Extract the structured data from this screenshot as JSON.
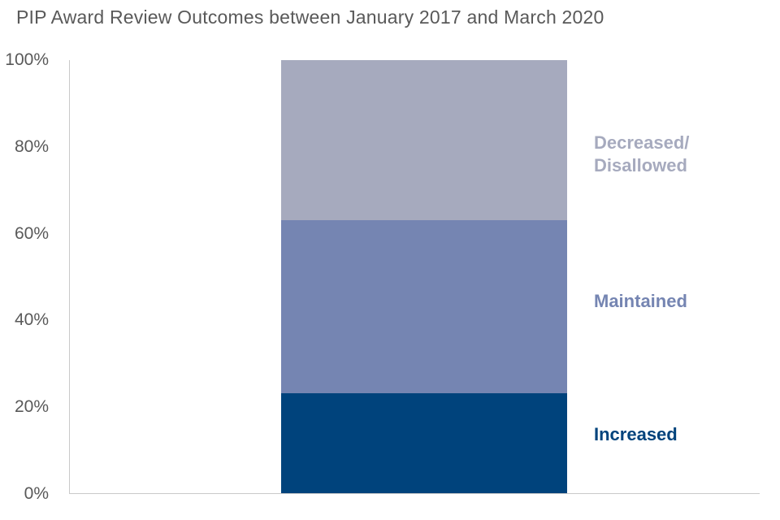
{
  "title": "PIP Award Review Outcomes between January 2017 and March 2020",
  "chart_data": {
    "type": "bar",
    "variant": "100%-stacked-column",
    "title": "PIP Award Review Outcomes between January 2017 and March 2020",
    "categories": [
      ""
    ],
    "series": [
      {
        "name": "Increased",
        "values": [
          23
        ],
        "color": "#00437c"
      },
      {
        "name": "Maintained",
        "values": [
          40
        ],
        "color": "#7585b2"
      },
      {
        "name": "Decreased/Disallowed",
        "values": [
          37
        ],
        "color": "#a6aabe"
      }
    ],
    "xlabel": "",
    "ylabel": "",
    "ylim": [
      0,
      100
    ],
    "yticks": [
      "0%",
      "20%",
      "40%",
      "60%",
      "80%",
      "100%"
    ],
    "grid": false,
    "legend_position": "right, direct labels beside each segment"
  },
  "labels": {
    "decreased": {
      "line1": "Decreased/",
      "line2": "Disallowed"
    },
    "maintained": "Maintained",
    "increased": "Increased"
  },
  "colors": {
    "title_text": "#595959",
    "tick_text": "#595959",
    "axis_line": "#c9c9c9",
    "increased": "#00437c",
    "maintained": "#7585b2",
    "decreased": "#a6aabe"
  }
}
